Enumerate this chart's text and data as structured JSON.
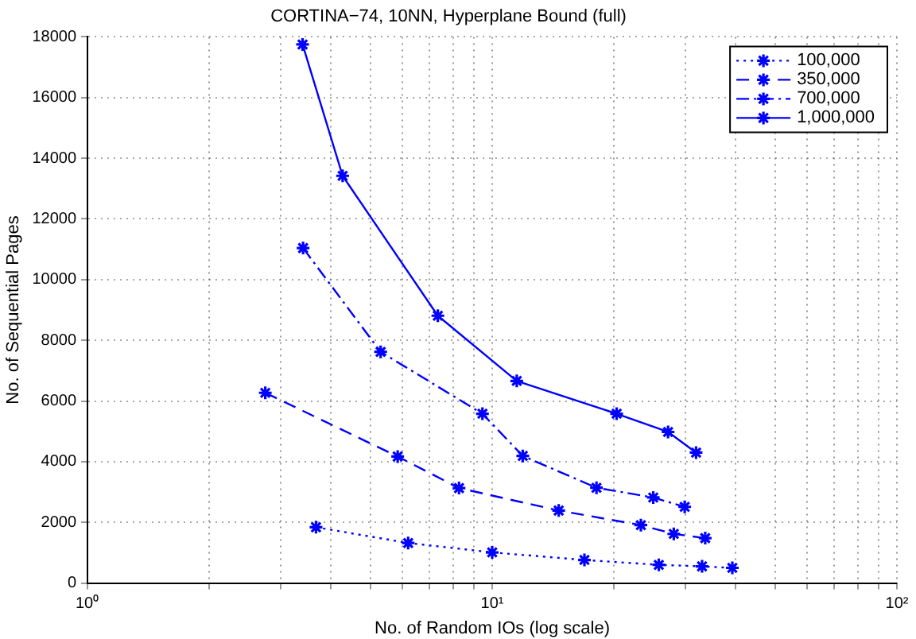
{
  "chart_data": {
    "type": "line",
    "title": "CORTINA−74, 10NN, Hyperplane Bound (full)",
    "xlabel": "No. of Random IOs (log scale)",
    "ylabel": "No. of Sequential Pages",
    "log": "x",
    "grid": true,
    "legend": "top right",
    "marker": "cross",
    "xlim": [
      1,
      100
    ],
    "xticks": [
      {
        "value": 1,
        "label": "10⁰"
      },
      {
        "value": 2,
        "label": null
      },
      {
        "value": 3,
        "label": null
      },
      {
        "value": 4,
        "label": null
      },
      {
        "value": 5,
        "label": null
      },
      {
        "value": 6,
        "label": null
      },
      {
        "value": 7,
        "label": null
      },
      {
        "value": 8,
        "label": null
      },
      {
        "value": 9,
        "label": null
      },
      {
        "value": 10,
        "label": "10¹"
      },
      {
        "value": 20,
        "label": null
      },
      {
        "value": 30,
        "label": null
      },
      {
        "value": 40,
        "label": null
      },
      {
        "value": 50,
        "label": null
      },
      {
        "value": 60,
        "label": null
      },
      {
        "value": 70,
        "label": null
      },
      {
        "value": 80,
        "label": null
      },
      {
        "value": 90,
        "label": null
      },
      {
        "value": 100,
        "label": "10²"
      }
    ],
    "ylim": [
      0,
      18000
    ],
    "yticks": [
      0,
      2000,
      4000,
      6000,
      8000,
      10000,
      12000,
      14000,
      16000,
      18000
    ],
    "series": [
      {
        "name": "100,000",
        "color": "#0000ff",
        "line_style": "dotted",
        "x": [
          3.67,
          6.2,
          10,
          16.9,
          25.8,
          33,
          39.2
        ],
        "values": [
          1840,
          1320,
          1010,
          760,
          600,
          550,
          500
        ]
      },
      {
        "name": "350,000",
        "color": "#0000ff",
        "line_style": "dashed",
        "x": [
          2.75,
          5.84,
          8.28,
          14.6,
          23.3,
          28.1,
          33.6
        ],
        "values": [
          6270,
          4170,
          3130,
          2390,
          1910,
          1620,
          1480
        ]
      },
      {
        "name": "700,000",
        "color": "#0000ff",
        "line_style": "dashdot",
        "x": [
          3.41,
          5.3,
          9.46,
          11.9,
          18.1,
          25,
          29.9
        ],
        "values": [
          11040,
          7620,
          5580,
          4190,
          3140,
          2820,
          2510
        ]
      },
      {
        "name": "1,000,000",
        "color": "#0000ff",
        "line_style": "solid",
        "x": [
          3.4,
          4.27,
          7.34,
          11.5,
          20.3,
          27.2,
          31.9
        ],
        "values": [
          17750,
          13420,
          8810,
          6660,
          5580,
          4980,
          4300
        ]
      }
    ]
  }
}
